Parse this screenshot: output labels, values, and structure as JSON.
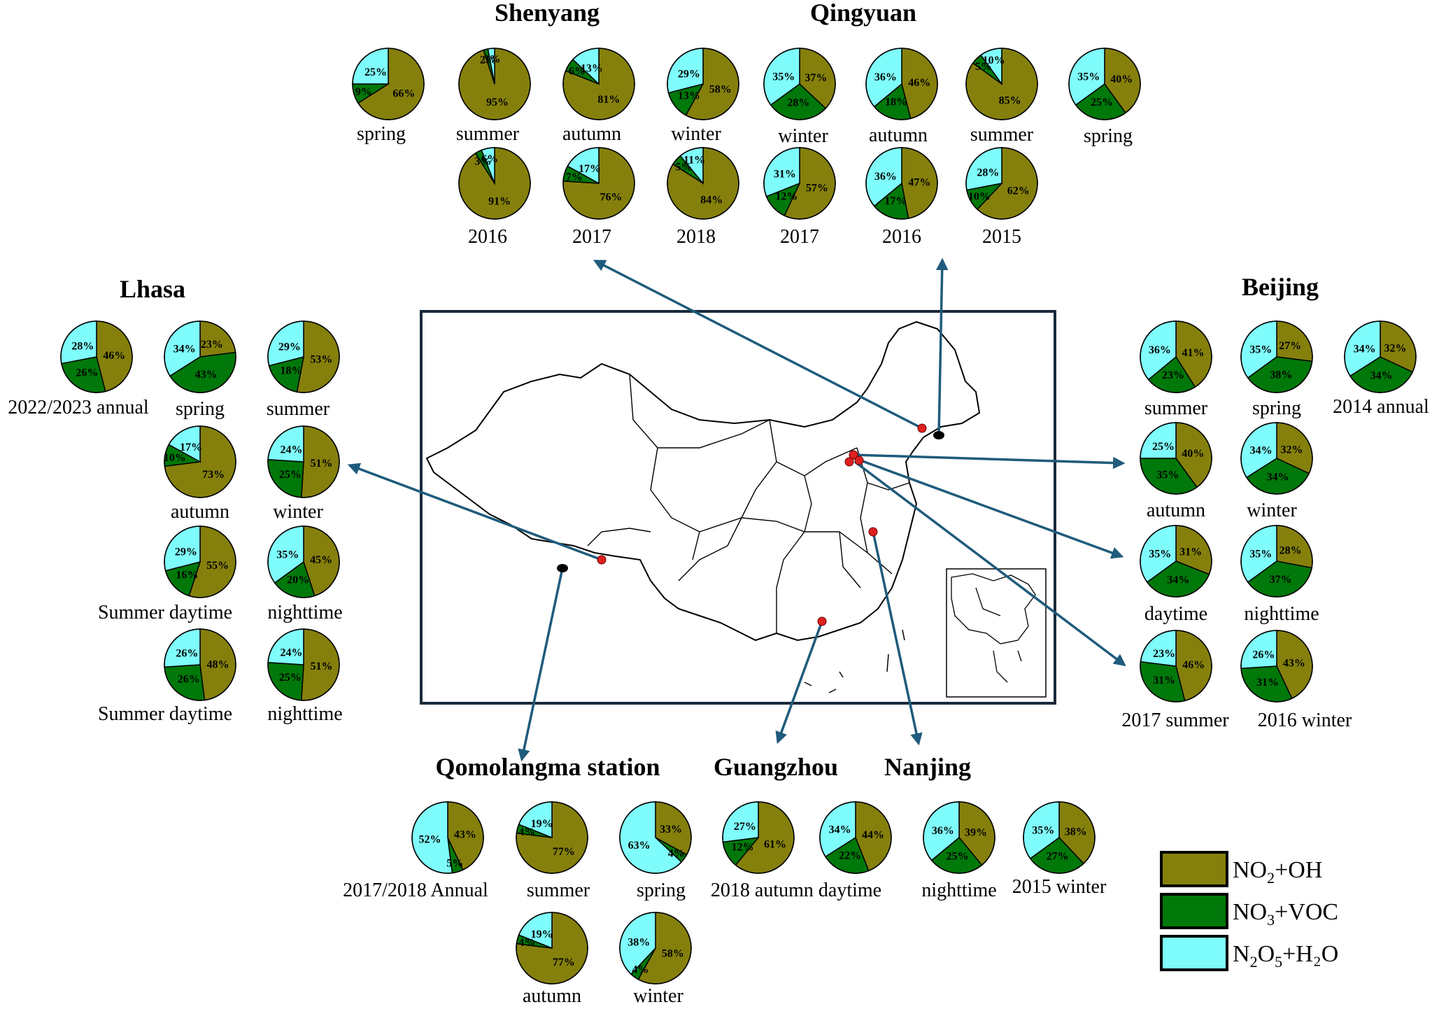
{
  "colors": {
    "no2_oh": "#85800c",
    "no3_voc": "#00780a",
    "n2o5_h2o": "#7ffdfd",
    "arrow": "#1f5b7c",
    "site_red": "#e02020",
    "site_black": "#000000",
    "frame": "#1a2a3a"
  },
  "legend": [
    {
      "key": "no2_oh",
      "base": "NO",
      "sub1": "2",
      "mid": "+OH",
      "sub2": "",
      "tail": ""
    },
    {
      "key": "no3_voc",
      "base": "NO",
      "sub1": "3",
      "mid": "+VOC",
      "sub2": "",
      "tail": ""
    },
    {
      "key": "n2o5_h2o",
      "base": "N",
      "sub1": "2",
      "mid": "O",
      "sub2": "5",
      "tail": "+H₂O"
    }
  ],
  "cities": [
    {
      "name": "Shenyang"
    },
    {
      "name": "Qingyuan"
    },
    {
      "name": "Lhasa"
    },
    {
      "name": "Beijing"
    },
    {
      "name": "Qomolangma station"
    },
    {
      "name": "Guangzhou"
    },
    {
      "name": "Nanjing"
    }
  ],
  "extra_labels": [
    {
      "text": "nighttime"
    },
    {
      "text": "autumn"
    },
    {
      "text": "winter"
    },
    {
      "text": "2018 autumn daytime"
    }
  ],
  "chart_data": {
    "type": "pie",
    "series_names": [
      "NO2+OH",
      "NO3+VOC",
      "N2O5+H2O"
    ],
    "pies": [
      {
        "city": "Shenyang",
        "label": "spring",
        "values": [
          66,
          9,
          25
        ]
      },
      {
        "city": "Shenyang",
        "label": "summer",
        "values": [
          95,
          2,
          3
        ]
      },
      {
        "city": "Shenyang",
        "label": "autumn",
        "values": [
          81,
          6,
          13
        ]
      },
      {
        "city": "Shenyang",
        "label": "winter",
        "values": [
          58,
          13,
          29
        ]
      },
      {
        "city": "Shenyang",
        "label": "2016",
        "values": [
          91,
          3,
          6
        ]
      },
      {
        "city": "Shenyang",
        "label": "2017",
        "values": [
          76,
          7,
          17
        ]
      },
      {
        "city": "Shenyang",
        "label": "2018",
        "values": [
          84,
          5,
          11
        ]
      },
      {
        "city": "Qingyuan",
        "label": "winter",
        "values": [
          37,
          28,
          35
        ]
      },
      {
        "city": "Qingyuan",
        "label": "autumn",
        "values": [
          46,
          18,
          36
        ]
      },
      {
        "city": "Qingyuan",
        "label": "summer",
        "values": [
          85,
          5,
          10
        ]
      },
      {
        "city": "Qingyuan",
        "label": "spring",
        "values": [
          40,
          25,
          35
        ]
      },
      {
        "city": "Qingyuan",
        "label": "2017",
        "values": [
          57,
          12,
          31
        ]
      },
      {
        "city": "Qingyuan",
        "label": "2016",
        "values": [
          47,
          17,
          36
        ]
      },
      {
        "city": "Qingyuan",
        "label": "2015",
        "values": [
          62,
          10,
          28
        ]
      },
      {
        "city": "Lhasa",
        "label": "2022/2023 annual",
        "values": [
          46,
          26,
          28
        ]
      },
      {
        "city": "Lhasa",
        "label": "spring",
        "values": [
          23,
          43,
          34
        ]
      },
      {
        "city": "Lhasa",
        "label": "summer",
        "values": [
          53,
          18,
          29
        ]
      },
      {
        "city": "Lhasa",
        "label": "autumn",
        "values": [
          73,
          10,
          17
        ]
      },
      {
        "city": "Lhasa",
        "label": "winter",
        "values": [
          51,
          25,
          24
        ]
      },
      {
        "city": "Lhasa",
        "label": "Summer daytime",
        "values": [
          55,
          16,
          29
        ]
      },
      {
        "city": "Lhasa",
        "label": "nighttime",
        "values": [
          45,
          20,
          35
        ]
      },
      {
        "city": "Lhasa",
        "label": "Summer daytime",
        "values": [
          48,
          26,
          26
        ]
      },
      {
        "city": "Lhasa",
        "label": "nighttime",
        "values": [
          51,
          25,
          24
        ]
      },
      {
        "city": "Beijing",
        "label": "summer",
        "values": [
          41,
          23,
          36
        ]
      },
      {
        "city": "Beijing",
        "label": "spring",
        "values": [
          27,
          38,
          35
        ]
      },
      {
        "city": "Beijing",
        "label": "2014 annual",
        "values": [
          32,
          34,
          34
        ]
      },
      {
        "city": "Beijing",
        "label": "autumn",
        "values": [
          40,
          35,
          25
        ]
      },
      {
        "city": "Beijing",
        "label": "winter",
        "values": [
          32,
          34,
          34
        ]
      },
      {
        "city": "Beijing",
        "label": "daytime",
        "values": [
          31,
          34,
          35
        ]
      },
      {
        "city": "Beijing",
        "label": "nighttime",
        "values": [
          28,
          37,
          35
        ]
      },
      {
        "city": "Beijing",
        "label": "2017 summer",
        "values": [
          46,
          31,
          23
        ]
      },
      {
        "city": "Beijing",
        "label": "2016 winter",
        "values": [
          43,
          31,
          26
        ]
      },
      {
        "city": "Qomolangma station",
        "label": "2017/2018 Annual",
        "values": [
          43,
          5,
          52
        ]
      },
      {
        "city": "Qomolangma station",
        "label": "summer",
        "values": [
          77,
          4,
          19
        ]
      },
      {
        "city": "Qomolangma station",
        "label": "spring",
        "values": [
          33,
          4,
          63
        ]
      },
      {
        "city": "Qomolangma station",
        "label": "",
        "values": [
          77,
          4,
          19
        ]
      },
      {
        "city": "Qomolangma station",
        "label": "",
        "values": [
          58,
          4,
          38
        ]
      },
      {
        "city": "Guangzhou",
        "label": "",
        "values": [
          61,
          12,
          27
        ]
      },
      {
        "city": "Nanjing",
        "label": "",
        "values": [
          44,
          22,
          34
        ]
      },
      {
        "city": "Nanjing",
        "label": "",
        "values": [
          39,
          25,
          36
        ]
      },
      {
        "city": "Nanjing",
        "label": "2015 winter",
        "values": [
          38,
          27,
          35
        ]
      }
    ]
  }
}
